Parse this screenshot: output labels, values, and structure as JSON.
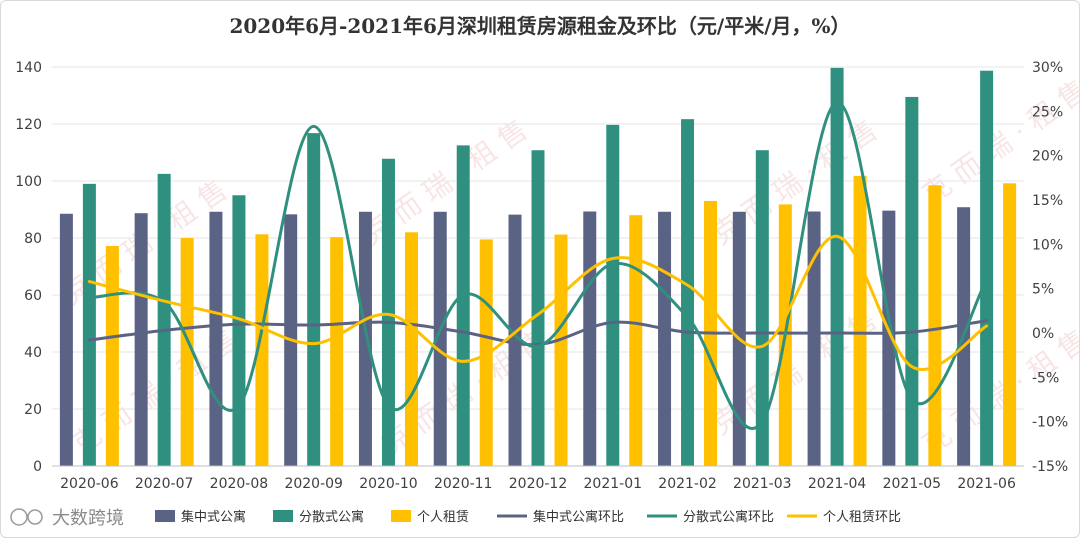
{
  "chart_data": {
    "type": "bar+line",
    "title": "2020年6月-2021年6月深圳租赁房源租金及环比（元/平米/月，%）",
    "categories": [
      "2020-06",
      "2020-07",
      "2020-08",
      "2020-09",
      "2020-10",
      "2020-11",
      "2020-12",
      "2021-01",
      "2021-02",
      "2021-03",
      "2021-04",
      "2021-05",
      "2021-06"
    ],
    "left_axis": {
      "min": 0,
      "max": 140,
      "ticks": [
        "0",
        "20",
        "40",
        "60",
        "80",
        "100",
        "120",
        "140"
      ]
    },
    "right_axis": {
      "min": -15,
      "max": 30,
      "ticks": [
        "-15%",
        "-10%",
        "-5%",
        "0%",
        "5%",
        "10%",
        "15%",
        "20%",
        "25%",
        "30%"
      ]
    },
    "bar_series": [
      {
        "name": "集中式公寓",
        "color": "#5b6384",
        "values": [
          88.5,
          88.7,
          89.2,
          88.3,
          89.2,
          89.2,
          88.2,
          89.3,
          89.2,
          89.2,
          89.3,
          89.6,
          90.8
        ]
      },
      {
        "name": "分散式公寓",
        "color": "#2f9080",
        "values": [
          99.0,
          102.5,
          95.0,
          116.8,
          107.8,
          112.5,
          110.8,
          119.7,
          121.7,
          110.8,
          139.7,
          129.5,
          138.7
        ]
      },
      {
        "name": "个人租赁",
        "color": "#ffc000",
        "values": [
          77.2,
          80.0,
          81.3,
          80.3,
          82.0,
          79.5,
          81.2,
          88.0,
          93.0,
          91.8,
          101.8,
          98.5,
          99.2
        ]
      }
    ],
    "line_series": [
      {
        "name": "集中式公寓环比",
        "color": "#5b6384",
        "values": [
          -0.8,
          0.3,
          1.0,
          0.9,
          1.2,
          0.1,
          -1.3,
          1.2,
          0.1,
          0.0,
          0.0,
          0.1,
          1.4
        ]
      },
      {
        "name": "分散式公寓环比",
        "color": "#2f9080",
        "values": [
          4.0,
          3.5,
          -8.2,
          23.3,
          -8.2,
          4.3,
          -1.5,
          7.8,
          1.8,
          -10.0,
          26.0,
          -7.5,
          6.0
        ]
      },
      {
        "name": "个人租赁环比",
        "color": "#ffc000",
        "values": [
          5.8,
          3.6,
          1.6,
          -1.2,
          2.1,
          -3.2,
          2.1,
          8.4,
          5.4,
          -1.5,
          10.9,
          -3.8,
          0.8
        ]
      }
    ],
    "watermark_text": "克 而 瑞 · 租 售",
    "source_label": "大数跨境"
  }
}
